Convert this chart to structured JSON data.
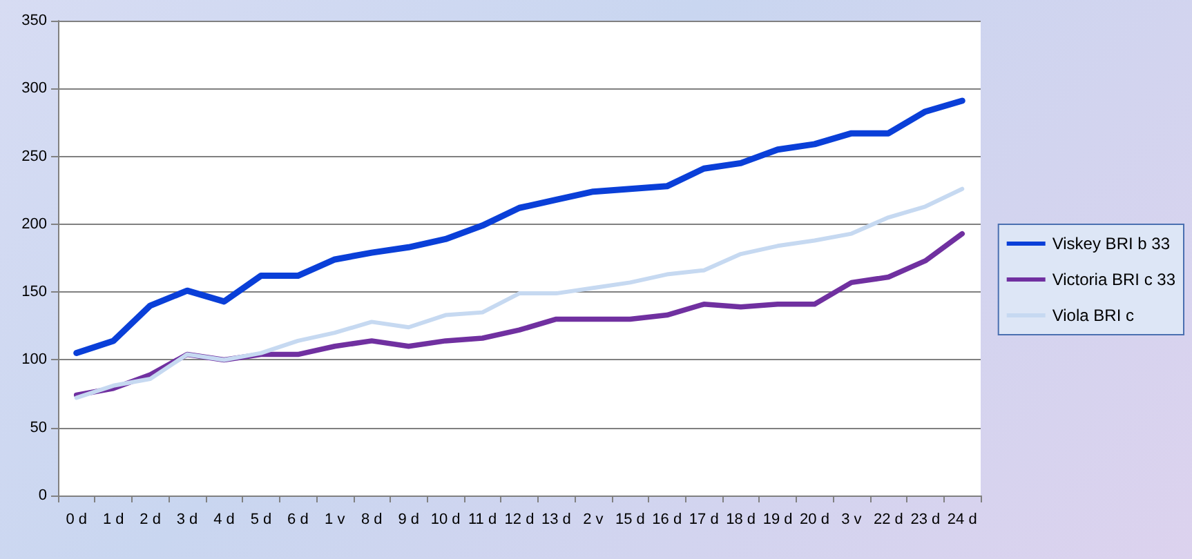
{
  "chart_data": {
    "type": "line",
    "categories": [
      "0 d",
      "1 d",
      "2 d",
      "3 d",
      "4 d",
      "5 d",
      "6 d",
      "1 v",
      "8 d",
      "9 d",
      "10 d",
      "11 d",
      "12 d",
      "13 d",
      "2 v",
      "15 d",
      "16 d",
      "17 d",
      "18 d",
      "19 d",
      "20 d",
      "3 v",
      "22 d",
      "23 d",
      "24 d"
    ],
    "series": [
      {
        "name": "Viskey BRI b 33",
        "color": "#0a3fd8",
        "values": [
          105,
          114,
          140,
          151,
          143,
          162,
          162,
          174,
          179,
          183,
          189,
          199,
          212,
          218,
          224,
          226,
          228,
          241,
          245,
          255,
          259,
          267,
          267,
          283,
          291
        ]
      },
      {
        "name": "Victoria BRI c 33",
        "color": "#7030a0",
        "values": [
          74,
          79,
          89,
          104,
          100,
          104,
          104,
          110,
          114,
          110,
          114,
          116,
          122,
          130,
          130,
          130,
          133,
          141,
          139,
          141,
          141,
          157,
          161,
          173,
          193
        ]
      },
      {
        "name": "Viola BRI c",
        "color": "#c6d9f1",
        "values": [
          72,
          81,
          86,
          104,
          100,
          105,
          114,
          120,
          128,
          124,
          133,
          135,
          149,
          149,
          153,
          157,
          163,
          166,
          178,
          184,
          188,
          193,
          205,
          213,
          226
        ]
      }
    ],
    "ylim": [
      0,
      350
    ],
    "yticks": [
      0,
      50,
      100,
      150,
      200,
      250,
      300,
      350
    ],
    "grid": "y",
    "legend": "right",
    "marker": "none",
    "line_style": "solid"
  }
}
